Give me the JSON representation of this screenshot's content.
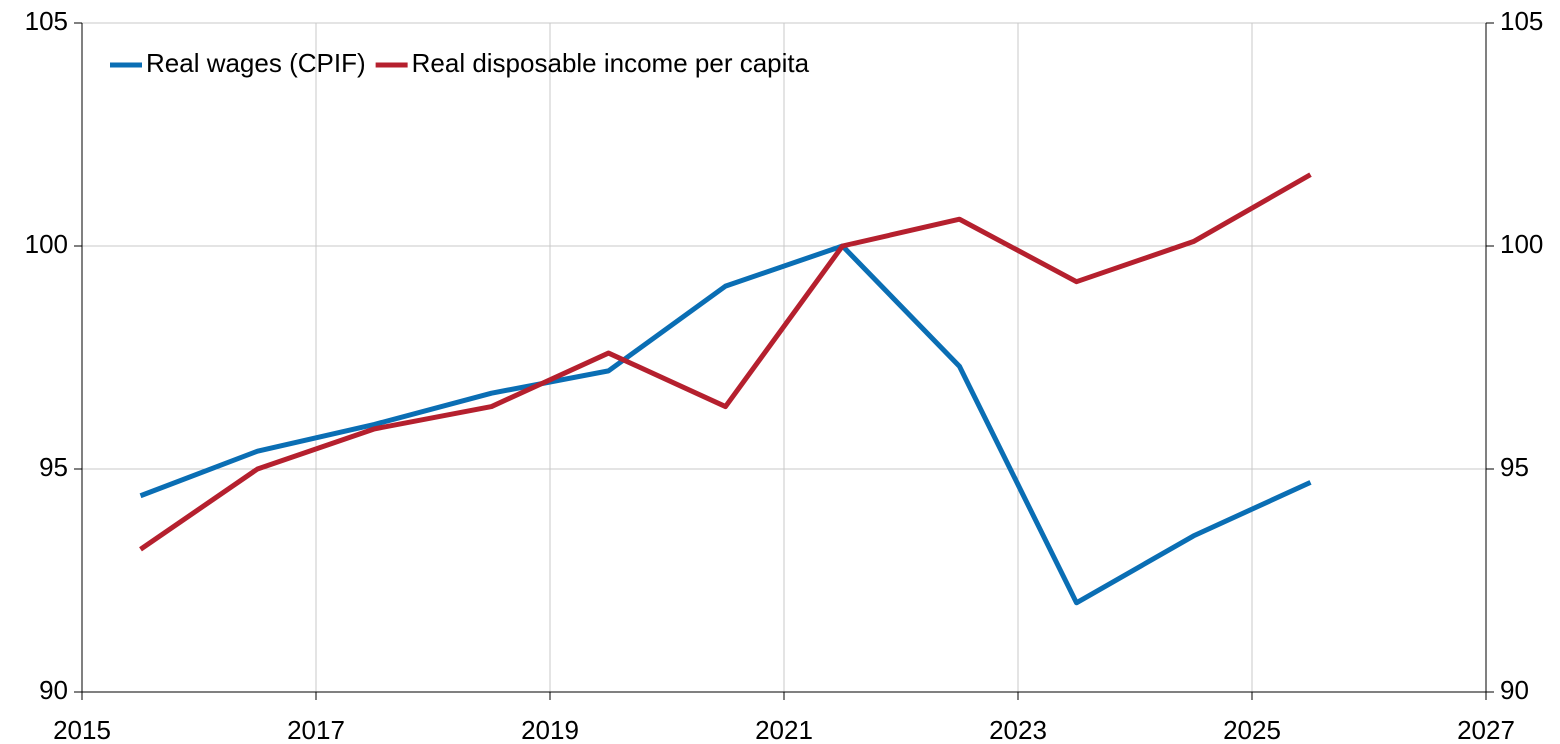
{
  "chart_data": {
    "type": "line",
    "x": [
      2015.5,
      2016.5,
      2017.5,
      2018.5,
      2019.5,
      2020.5,
      2021.5,
      2022.5,
      2023.5,
      2024.5,
      2025.5
    ],
    "series": [
      {
        "name": "Real wages (CPIF)",
        "color": "#0a6eb4",
        "values": [
          94.4,
          95.4,
          96.0,
          96.7,
          97.2,
          99.1,
          100.0,
          97.3,
          92.0,
          93.5,
          94.7
        ]
      },
      {
        "name": "Real disposable income per capita",
        "color": "#b5202e",
        "values": [
          93.2,
          95.0,
          95.9,
          96.4,
          97.6,
          96.4,
          100.0,
          100.6,
          99.2,
          100.1,
          101.6
        ]
      }
    ],
    "xlim": [
      2015,
      2027
    ],
    "xticks": [
      2015,
      2017,
      2019,
      2021,
      2023,
      2025,
      2027
    ],
    "ylim": [
      90,
      105
    ],
    "yticks": [
      90,
      95,
      100,
      105
    ],
    "y2lim": [
      90,
      105
    ],
    "y2ticks": [
      90,
      95,
      100,
      105
    ],
    "grid": true,
    "legend": "top-left"
  }
}
